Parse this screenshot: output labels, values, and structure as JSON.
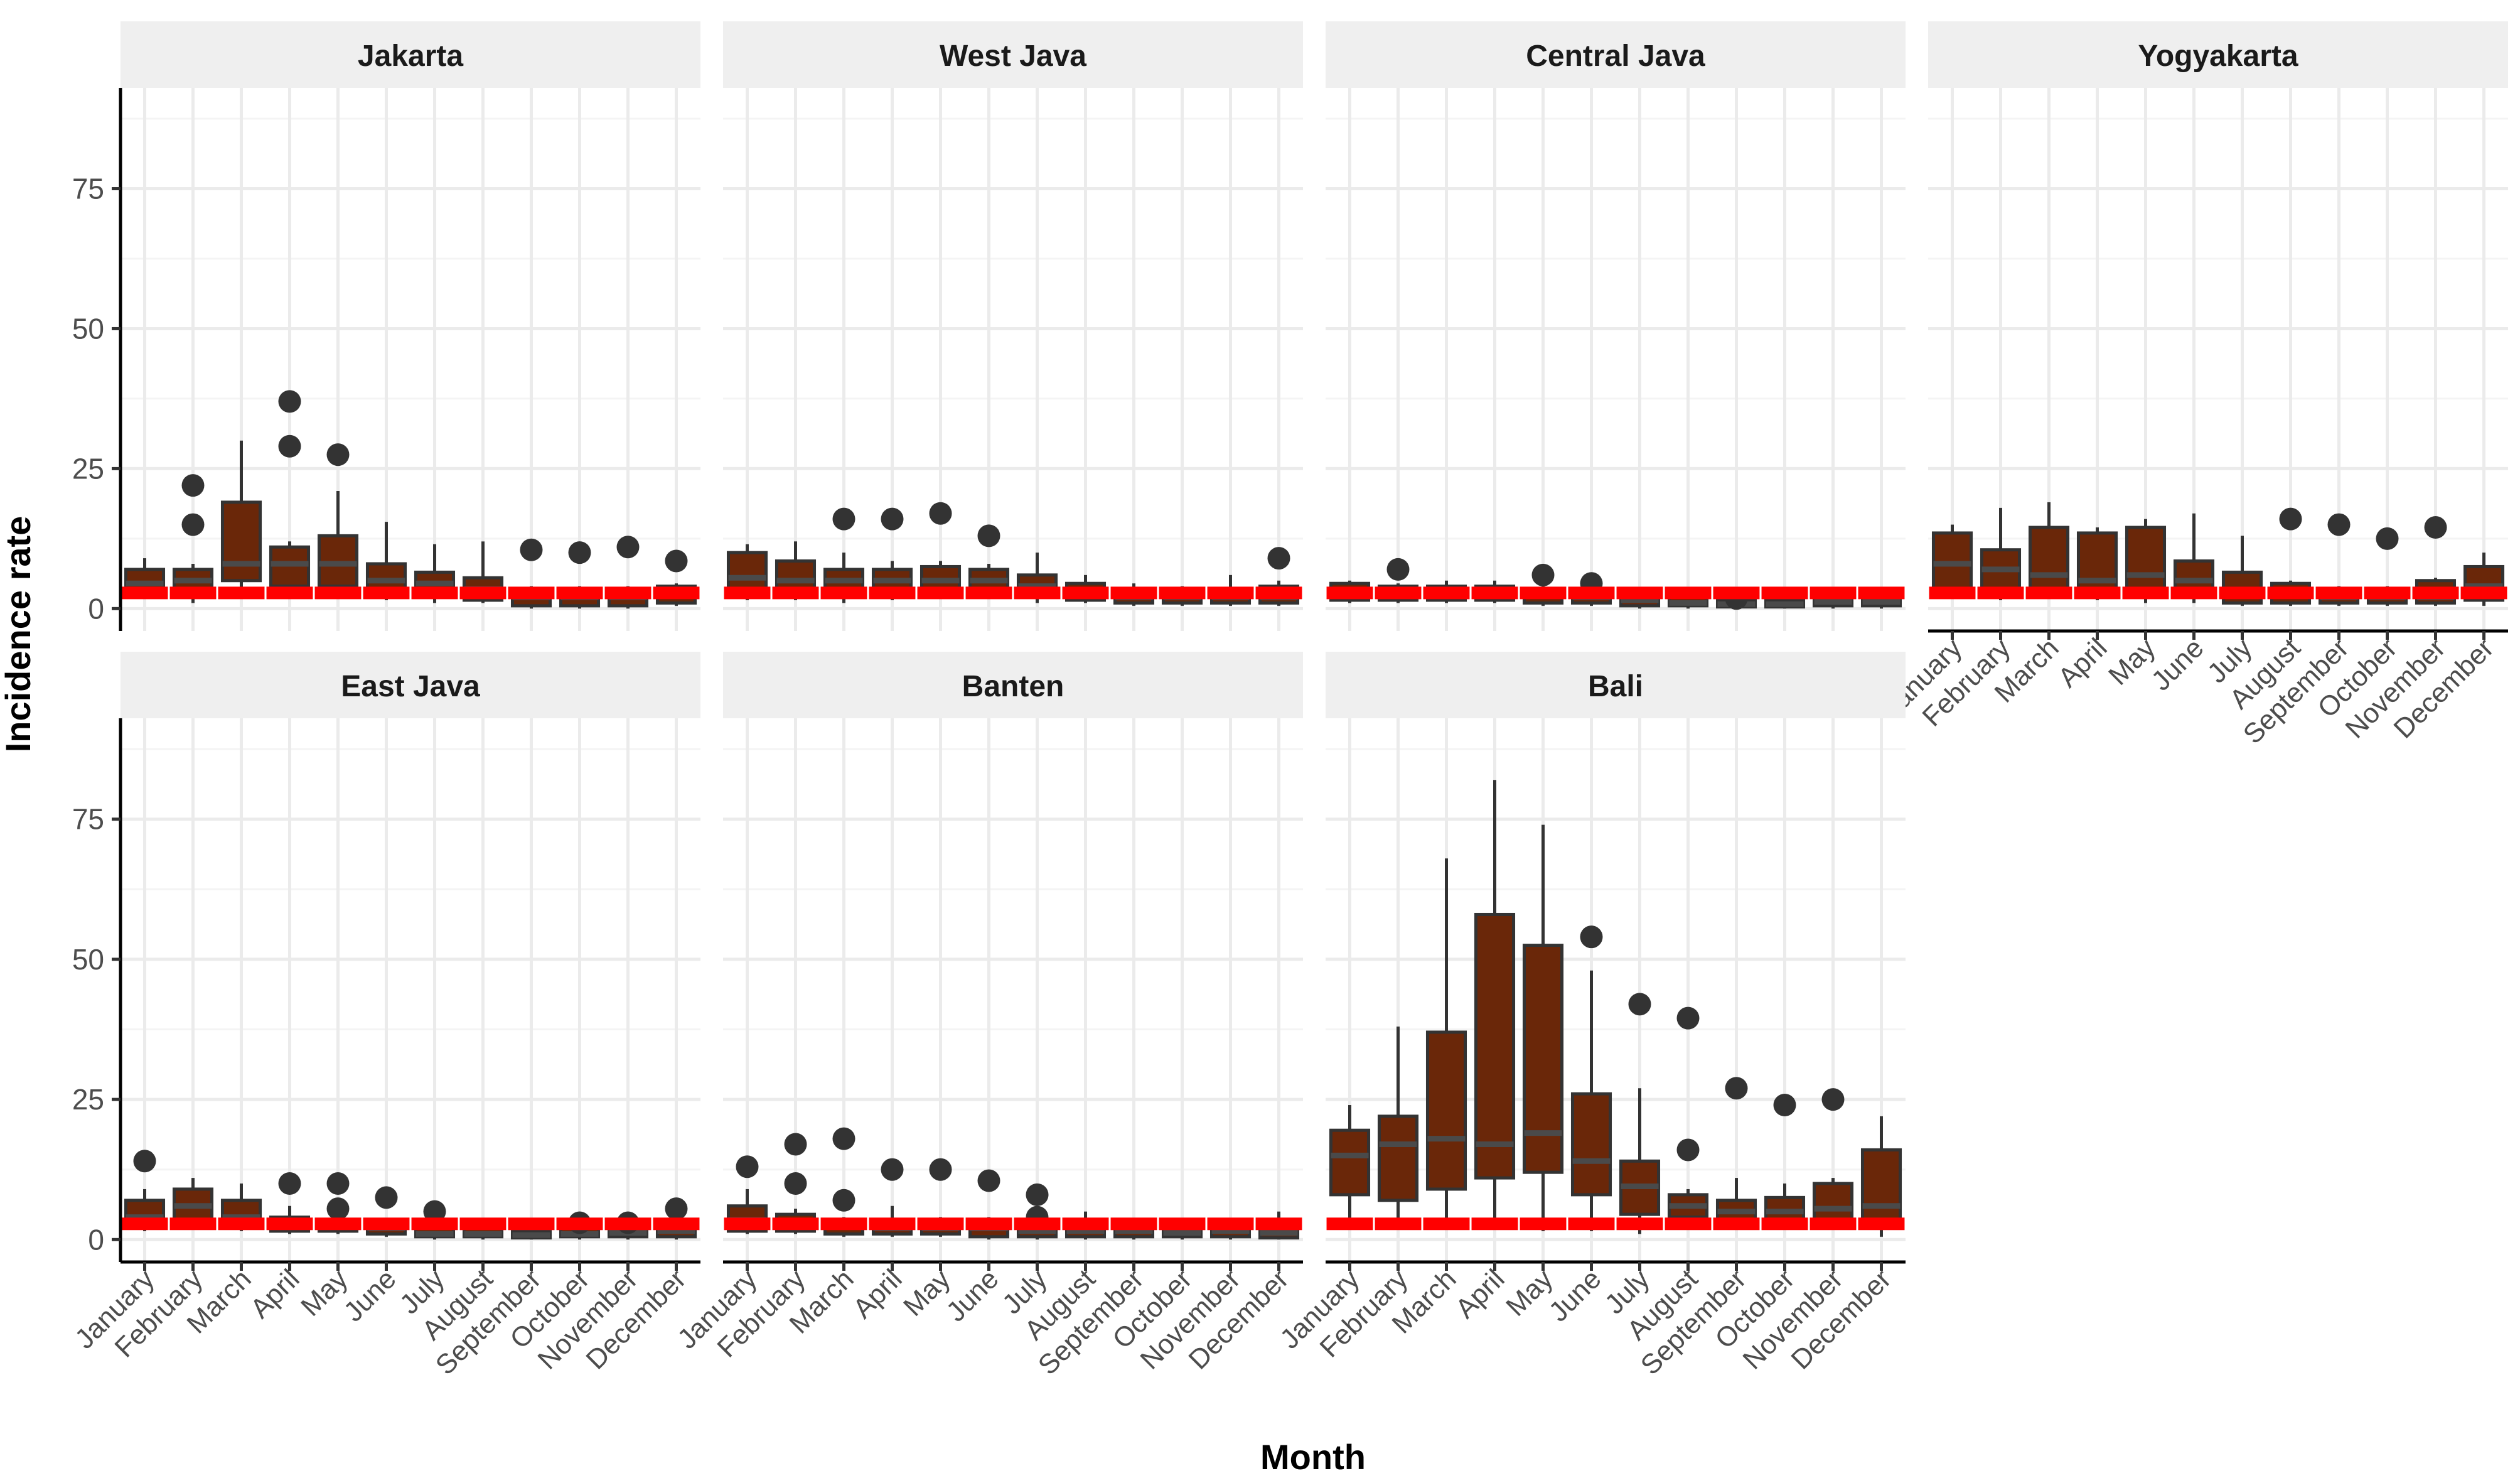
{
  "chart_data": {
    "type": "box",
    "xlabel": "Month",
    "ylabel": "Incidence rate",
    "y_axis": {
      "range": [
        -4,
        93
      ],
      "ticks": [
        0,
        25,
        50,
        75
      ]
    },
    "months": [
      "January",
      "February",
      "March",
      "April",
      "May",
      "June",
      "July",
      "August",
      "September",
      "October",
      "November",
      "December"
    ],
    "colors": {
      "box_fill": "#6a2709",
      "box_line": "#333333",
      "median": "#4a4a4a",
      "threshold": "#ff0000",
      "strip_bg": "#efefef",
      "grid": "#ebebeb",
      "axis": "#000000"
    },
    "panels": [
      {
        "title": "Jakarta",
        "boxes": [
          {
            "q1": 3,
            "median": 4.5,
            "q3": 7,
            "lo": 2,
            "hi": 9,
            "out": []
          },
          {
            "q1": 3.5,
            "median": 5,
            "q3": 7,
            "lo": 1,
            "hi": 8,
            "out": [
              22,
              15
            ]
          },
          {
            "q1": 5,
            "median": 8,
            "q3": 19,
            "lo": 2,
            "hi": 30,
            "out": []
          },
          {
            "q1": 4,
            "median": 8,
            "q3": 11,
            "lo": 2,
            "hi": 12,
            "out": [
              37,
              29
            ]
          },
          {
            "q1": 4,
            "median": 8,
            "q3": 13,
            "lo": 3,
            "hi": 21,
            "out": [
              27.5
            ]
          },
          {
            "q1": 2.5,
            "median": 5,
            "q3": 8,
            "lo": 1.5,
            "hi": 15.5,
            "out": []
          },
          {
            "q1": 2,
            "median": 4.5,
            "q3": 6.5,
            "lo": 1,
            "hi": 11.5,
            "out": []
          },
          {
            "q1": 1.5,
            "median": 3.5,
            "q3": 5.5,
            "lo": 1,
            "hi": 12,
            "out": []
          },
          {
            "q1": 0.5,
            "median": 2,
            "q3": 3.5,
            "lo": 0,
            "hi": 4,
            "out": [
              10.5
            ]
          },
          {
            "q1": 0.5,
            "median": 2,
            "q3": 3,
            "lo": 0,
            "hi": 4,
            "out": [
              10
            ]
          },
          {
            "q1": 0.5,
            "median": 2,
            "q3": 3.5,
            "lo": 0,
            "hi": 4,
            "out": [
              11
            ]
          },
          {
            "q1": 1,
            "median": 2.5,
            "q3": 4,
            "lo": 0.5,
            "hi": 4.5,
            "out": [
              8.5
            ]
          }
        ],
        "threshold": [
          2.8,
          2.8,
          2.8,
          2.8,
          2.8,
          2.8,
          2.8,
          2.8,
          2.8,
          2.8,
          2.8,
          2.8
        ]
      },
      {
        "title": "West Java",
        "boxes": [
          {
            "q1": 2.5,
            "median": 5.5,
            "q3": 10,
            "lo": 1.5,
            "hi": 11.5,
            "out": []
          },
          {
            "q1": 2,
            "median": 5,
            "q3": 8.5,
            "lo": 1.5,
            "hi": 12,
            "out": []
          },
          {
            "q1": 2.5,
            "median": 5,
            "q3": 7,
            "lo": 1,
            "hi": 10,
            "out": [
              16
            ]
          },
          {
            "q1": 2.5,
            "median": 5,
            "q3": 7,
            "lo": 1.5,
            "hi": 8.5,
            "out": [
              16
            ]
          },
          {
            "q1": 3,
            "median": 5,
            "q3": 7.5,
            "lo": 2,
            "hi": 8.5,
            "out": [
              17
            ]
          },
          {
            "q1": 3,
            "median": 5,
            "q3": 7,
            "lo": 2,
            "hi": 8,
            "out": [
              13
            ]
          },
          {
            "q1": 2.5,
            "median": 4,
            "q3": 6,
            "lo": 1,
            "hi": 10,
            "out": []
          },
          {
            "q1": 1.5,
            "median": 3,
            "q3": 4.5,
            "lo": 1,
            "hi": 6,
            "out": []
          },
          {
            "q1": 1,
            "median": 2,
            "q3": 3.5,
            "lo": 0.5,
            "hi": 4.5,
            "out": []
          },
          {
            "q1": 1,
            "median": 2,
            "q3": 3.5,
            "lo": 0.5,
            "hi": 4,
            "out": []
          },
          {
            "q1": 1,
            "median": 2,
            "q3": 3.5,
            "lo": 0.5,
            "hi": 6,
            "out": []
          },
          {
            "q1": 1,
            "median": 2,
            "q3": 4,
            "lo": 0.5,
            "hi": 5,
            "out": [
              9
            ]
          }
        ],
        "threshold": [
          2.8,
          2.8,
          2.8,
          2.8,
          2.8,
          2.8,
          2.8,
          2.8,
          2.8,
          2.8,
          2.8,
          2.8
        ]
      },
      {
        "title": "Central Java",
        "boxes": [
          {
            "q1": 1.5,
            "median": 3,
            "q3": 4.5,
            "lo": 1,
            "hi": 5,
            "out": []
          },
          {
            "q1": 1.5,
            "median": 3,
            "q3": 4,
            "lo": 1,
            "hi": 4.5,
            "out": [
              7
            ]
          },
          {
            "q1": 1.5,
            "median": 3,
            "q3": 4,
            "lo": 1,
            "hi": 5,
            "out": []
          },
          {
            "q1": 1.5,
            "median": 3,
            "q3": 4,
            "lo": 1,
            "hi": 5,
            "out": []
          },
          {
            "q1": 1,
            "median": 2.5,
            "q3": 3.5,
            "lo": 0.5,
            "hi": 4,
            "out": [
              6
            ]
          },
          {
            "q1": 1,
            "median": 2,
            "q3": 3,
            "lo": 0.5,
            "hi": 3.5,
            "out": [
              4.5
            ]
          },
          {
            "q1": 0.5,
            "median": 1.5,
            "q3": 2.5,
            "lo": 0,
            "hi": 3,
            "out": []
          },
          {
            "q1": 0.5,
            "median": 1,
            "q3": 2,
            "lo": 0,
            "hi": 2.5,
            "out": []
          },
          {
            "q1": 0.3,
            "median": 0.8,
            "q3": 1.5,
            "lo": 0,
            "hi": 2,
            "out": [
              1.8
            ]
          },
          {
            "q1": 0.3,
            "median": 0.8,
            "q3": 1.5,
            "lo": 0,
            "hi": 2,
            "out": []
          },
          {
            "q1": 0.5,
            "median": 1.2,
            "q3": 2,
            "lo": 0,
            "hi": 2.5,
            "out": []
          },
          {
            "q1": 0.5,
            "median": 1.2,
            "q3": 2,
            "lo": 0,
            "hi": 3,
            "out": []
          }
        ],
        "threshold": [
          2.8,
          2.8,
          2.8,
          2.8,
          2.8,
          2.8,
          2.8,
          2.8,
          2.8,
          2.8,
          2.8,
          2.8
        ]
      },
      {
        "title": "Yogyakarta",
        "boxes": [
          {
            "q1": 3,
            "median": 8,
            "q3": 13.5,
            "lo": 2,
            "hi": 15,
            "out": []
          },
          {
            "q1": 2,
            "median": 7,
            "q3": 10.5,
            "lo": 1.5,
            "hi": 18,
            "out": []
          },
          {
            "q1": 3,
            "median": 6,
            "q3": 14.5,
            "lo": 2,
            "hi": 19,
            "out": []
          },
          {
            "q1": 2.5,
            "median": 5,
            "q3": 13.5,
            "lo": 1.5,
            "hi": 14.5,
            "out": []
          },
          {
            "q1": 2,
            "median": 6,
            "q3": 14.5,
            "lo": 1,
            "hi": 16,
            "out": []
          },
          {
            "q1": 2,
            "median": 5,
            "q3": 8.5,
            "lo": 1,
            "hi": 17,
            "out": []
          },
          {
            "q1": 1,
            "median": 3,
            "q3": 6.5,
            "lo": 0.5,
            "hi": 13,
            "out": []
          },
          {
            "q1": 1,
            "median": 2.5,
            "q3": 4.5,
            "lo": 0.5,
            "hi": 5,
            "out": [
              16
            ]
          },
          {
            "q1": 1,
            "median": 2,
            "q3": 3.5,
            "lo": 0.5,
            "hi": 4,
            "out": [
              15
            ]
          },
          {
            "q1": 1,
            "median": 2,
            "q3": 3.5,
            "lo": 0.5,
            "hi": 4,
            "out": [
              12.5
            ]
          },
          {
            "q1": 1,
            "median": 2,
            "q3": 5,
            "lo": 0.5,
            "hi": 5.5,
            "out": [
              14.5
            ]
          },
          {
            "q1": 1.5,
            "median": 4,
            "q3": 7.5,
            "lo": 0.5,
            "hi": 10,
            "out": []
          }
        ],
        "threshold": [
          2.8,
          2.8,
          2.8,
          2.8,
          2.8,
          2.8,
          2.8,
          2.8,
          2.8,
          2.8,
          2.8,
          2.8
        ]
      },
      {
        "title": "East Java",
        "boxes": [
          {
            "q1": 2.5,
            "median": 4,
            "q3": 7,
            "lo": 1.5,
            "hi": 9,
            "out": [
              14
            ]
          },
          {
            "q1": 2.5,
            "median": 6,
            "q3": 9,
            "lo": 2,
            "hi": 11,
            "out": []
          },
          {
            "q1": 2,
            "median": 4,
            "q3": 7,
            "lo": 1.5,
            "hi": 10,
            "out": []
          },
          {
            "q1": 1.5,
            "median": 3,
            "q3": 4,
            "lo": 1,
            "hi": 6,
            "out": [
              10
            ]
          },
          {
            "q1": 1.5,
            "median": 3,
            "q3": 3.5,
            "lo": 1,
            "hi": 4,
            "out": [
              10,
              5.5
            ]
          },
          {
            "q1": 1,
            "median": 2,
            "q3": 3,
            "lo": 0.5,
            "hi": 3.5,
            "out": [
              7.5
            ]
          },
          {
            "q1": 0.5,
            "median": 1,
            "q3": 2.5,
            "lo": 0,
            "hi": 3,
            "out": [
              5
            ]
          },
          {
            "q1": 0.5,
            "median": 1,
            "q3": 2,
            "lo": 0,
            "hi": 2.5,
            "out": []
          },
          {
            "q1": 0.3,
            "median": 0.8,
            "q3": 1.5,
            "lo": 0,
            "hi": 2,
            "out": []
          },
          {
            "q1": 0.5,
            "median": 1,
            "q3": 2,
            "lo": 0,
            "hi": 2.5,
            "out": [
              3
            ]
          },
          {
            "q1": 0.5,
            "median": 1.2,
            "q3": 2,
            "lo": 0,
            "hi": 2.5,
            "out": [
              3
            ]
          },
          {
            "q1": 0.5,
            "median": 1.5,
            "q3": 2.5,
            "lo": 0,
            "hi": 3,
            "out": [
              5.5
            ]
          }
        ],
        "threshold": [
          2.8,
          2.8,
          2.8,
          2.8,
          2.8,
          2.8,
          2.8,
          2.8,
          2.8,
          2.8,
          2.8,
          2.8
        ]
      },
      {
        "title": "Banten",
        "boxes": [
          {
            "q1": 1.5,
            "median": 3.5,
            "q3": 6,
            "lo": 1,
            "hi": 9,
            "out": [
              13
            ]
          },
          {
            "q1": 1.5,
            "median": 3,
            "q3": 4.5,
            "lo": 1,
            "hi": 5.5,
            "out": [
              17,
              10
            ]
          },
          {
            "q1": 1,
            "median": 2.5,
            "q3": 3.5,
            "lo": 0.5,
            "hi": 4,
            "out": [
              18,
              7
            ]
          },
          {
            "q1": 1,
            "median": 2,
            "q3": 3.5,
            "lo": 0.5,
            "hi": 6,
            "out": [
              12.5
            ]
          },
          {
            "q1": 1,
            "median": 2,
            "q3": 3,
            "lo": 0.5,
            "hi": 4,
            "out": [
              12.5
            ]
          },
          {
            "q1": 0.5,
            "median": 2,
            "q3": 3.5,
            "lo": 0,
            "hi": 4,
            "out": [
              10.5
            ]
          },
          {
            "q1": 0.5,
            "median": 1.5,
            "q3": 3,
            "lo": 0,
            "hi": 3,
            "out": [
              8,
              4
            ]
          },
          {
            "q1": 0.5,
            "median": 1.5,
            "q3": 2.5,
            "lo": 0,
            "hi": 5,
            "out": []
          },
          {
            "q1": 0.5,
            "median": 1.5,
            "q3": 2.5,
            "lo": 0,
            "hi": 3,
            "out": []
          },
          {
            "q1": 0.5,
            "median": 1.2,
            "q3": 2,
            "lo": 0,
            "hi": 2.5,
            "out": []
          },
          {
            "q1": 0.5,
            "median": 1.5,
            "q3": 2.5,
            "lo": 0,
            "hi": 3,
            "out": []
          },
          {
            "q1": 0.3,
            "median": 1.2,
            "q3": 2.5,
            "lo": 0,
            "hi": 5,
            "out": []
          }
        ],
        "threshold": [
          2.8,
          2.8,
          2.8,
          2.8,
          2.8,
          2.8,
          2.8,
          2.8,
          2.8,
          2.8,
          2.8,
          2.8
        ]
      },
      {
        "title": "Bali",
        "boxes": [
          {
            "q1": 8,
            "median": 15,
            "q3": 19.5,
            "lo": 3,
            "hi": 24,
            "out": []
          },
          {
            "q1": 7,
            "median": 17,
            "q3": 22,
            "lo": 3,
            "hi": 38,
            "out": []
          },
          {
            "q1": 9,
            "median": 18,
            "q3": 37,
            "lo": 3,
            "hi": 68,
            "out": []
          },
          {
            "q1": 11,
            "median": 17,
            "q3": 58,
            "lo": 3,
            "hi": 82,
            "out": []
          },
          {
            "q1": 12,
            "median": 19,
            "q3": 52.5,
            "lo": 1.5,
            "hi": 74,
            "out": []
          },
          {
            "q1": 8,
            "median": 14,
            "q3": 26,
            "lo": 1.5,
            "hi": 48,
            "out": [
              54
            ]
          },
          {
            "q1": 4.5,
            "median": 9.5,
            "q3": 14,
            "lo": 1,
            "hi": 27,
            "out": [
              42
            ]
          },
          {
            "q1": 4,
            "median": 6,
            "q3": 8,
            "lo": 2,
            "hi": 9,
            "out": [
              39.5,
              16
            ]
          },
          {
            "q1": 3,
            "median": 5,
            "q3": 7,
            "lo": 2,
            "hi": 11,
            "out": [
              27
            ]
          },
          {
            "q1": 3,
            "median": 5,
            "q3": 7.5,
            "lo": 2,
            "hi": 10,
            "out": [
              24
            ]
          },
          {
            "q1": 3,
            "median": 5.5,
            "q3": 10,
            "lo": 2,
            "hi": 11,
            "out": [
              25
            ]
          },
          {
            "q1": 2,
            "median": 6,
            "q3": 16,
            "lo": 0.5,
            "hi": 22,
            "out": []
          }
        ],
        "threshold": [
          2.8,
          2.8,
          2.8,
          2.8,
          2.8,
          2.8,
          2.8,
          2.8,
          2.8,
          2.8,
          2.8,
          2.8
        ]
      }
    ]
  }
}
